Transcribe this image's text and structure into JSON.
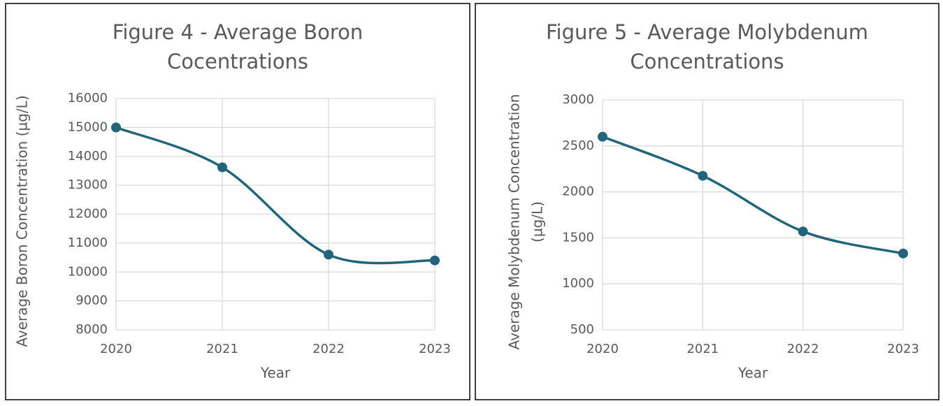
{
  "chart_data": [
    {
      "type": "line",
      "title": [
        "Figure 4 - Average Boron",
        "Cocentrations"
      ],
      "x": [
        2020,
        2021,
        2022,
        2023
      ],
      "values": [
        15000,
        13620,
        10600,
        10400
      ],
      "color": "#22657a",
      "xlim": [
        2020,
        2023
      ],
      "xticks": [
        2020,
        2021,
        2022,
        2023
      ],
      "ylim": [
        8000,
        16000
      ],
      "yticks": [
        8000,
        9000,
        10000,
        11000,
        12000,
        13000,
        14000,
        15000,
        16000
      ],
      "xlabel": "Year",
      "ylabel": [
        "Average Boron Concentration (µg/L)"
      ],
      "grid": true,
      "smooth": true
    },
    {
      "type": "line",
      "title": [
        "Figure 5 - Average Molybdenum",
        "Concentrations"
      ],
      "x": [
        2020,
        2021,
        2022,
        2023
      ],
      "values": [
        2600,
        2175,
        1570,
        1330
      ],
      "color": "#22657a",
      "xlim": [
        2020,
        2023
      ],
      "xticks": [
        2020,
        2021,
        2022,
        2023
      ],
      "ylim": [
        500,
        3000
      ],
      "yticks": [
        500,
        1000,
        1500,
        2000,
        2500,
        3000
      ],
      "xlabel": "Year",
      "ylabel": [
        "Average Molybdenum  Concentration",
        "(µg/L)"
      ],
      "grid": true,
      "smooth": true
    }
  ]
}
